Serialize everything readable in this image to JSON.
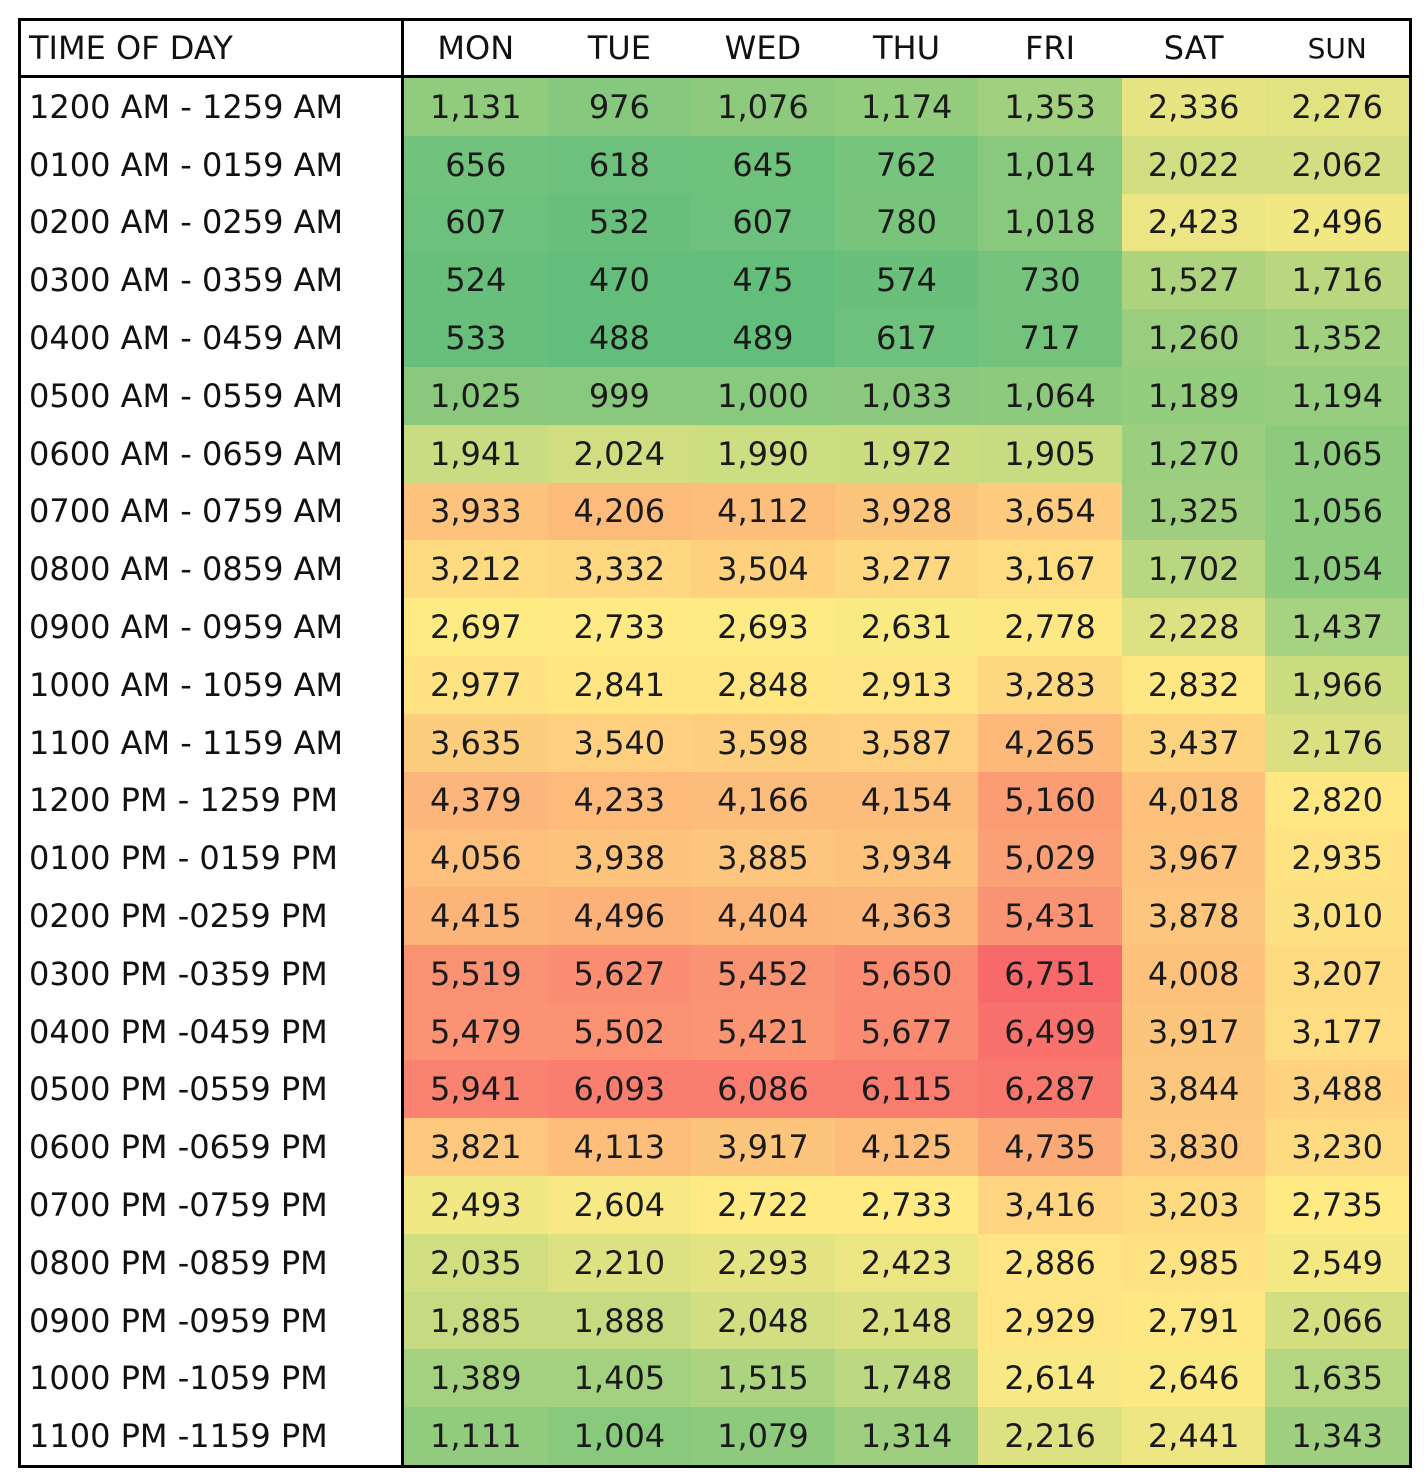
{
  "chart_data": {
    "type": "heatmap",
    "corner_label": "TIME OF DAY",
    "columns": [
      "MON",
      "TUE",
      "WED",
      "THU",
      "FRI",
      "SAT",
      "SUN"
    ],
    "rows": [
      "1200 AM - 1259 AM",
      "0100 AM - 0159 AM",
      "0200 AM - 0259 AM",
      "0300 AM - 0359 AM",
      "0400 AM - 0459 AM",
      "0500 AM - 0559 AM",
      "0600 AM - 0659 AM",
      "0700 AM - 0759 AM",
      "0800 AM - 0859 AM",
      "0900 AM - 0959 AM",
      "1000 AM - 1059 AM",
      "1100 AM - 1159 AM",
      "1200 PM - 1259 PM",
      "0100 PM - 0159 PM",
      "0200 PM -0259 PM",
      "0300 PM -0359 PM",
      "0400 PM -0459 PM",
      "0500 PM -0559 PM",
      "0600 PM -0659 PM",
      "0700 PM -0759 PM",
      "0800 PM -0859 PM",
      "0900 PM -0959 PM",
      "1000 PM -1059 PM",
      "1100 PM -1159 PM"
    ],
    "values": [
      [
        1131,
        976,
        1076,
        1174,
        1353,
        2336,
        2276
      ],
      [
        656,
        618,
        645,
        762,
        1014,
        2022,
        2062
      ],
      [
        607,
        532,
        607,
        780,
        1018,
        2423,
        2496
      ],
      [
        524,
        470,
        475,
        574,
        730,
        1527,
        1716
      ],
      [
        533,
        488,
        489,
        617,
        717,
        1260,
        1352
      ],
      [
        1025,
        999,
        1000,
        1033,
        1064,
        1189,
        1194
      ],
      [
        1941,
        2024,
        1990,
        1972,
        1905,
        1270,
        1065
      ],
      [
        3933,
        4206,
        4112,
        3928,
        3654,
        1325,
        1056
      ],
      [
        3212,
        3332,
        3504,
        3277,
        3167,
        1702,
        1054
      ],
      [
        2697,
        2733,
        2693,
        2631,
        2778,
        2228,
        1437
      ],
      [
        2977,
        2841,
        2848,
        2913,
        3283,
        2832,
        1966
      ],
      [
        3635,
        3540,
        3598,
        3587,
        4265,
        3437,
        2176
      ],
      [
        4379,
        4233,
        4166,
        4154,
        5160,
        4018,
        2820
      ],
      [
        4056,
        3938,
        3885,
        3934,
        5029,
        3967,
        2935
      ],
      [
        4415,
        4496,
        4404,
        4363,
        5431,
        3878,
        3010
      ],
      [
        5519,
        5627,
        5452,
        5650,
        6751,
        4008,
        3207
      ],
      [
        5479,
        5502,
        5421,
        5677,
        6499,
        3917,
        3177
      ],
      [
        5941,
        6093,
        6086,
        6115,
        6287,
        3844,
        3488
      ],
      [
        3821,
        4113,
        3917,
        4125,
        4735,
        3830,
        3230
      ],
      [
        2493,
        2604,
        2722,
        2733,
        3416,
        3203,
        2735
      ],
      [
        2035,
        2210,
        2293,
        2423,
        2886,
        2985,
        2549
      ],
      [
        1885,
        1888,
        2048,
        2148,
        2929,
        2791,
        2066
      ],
      [
        1389,
        1405,
        1515,
        1748,
        2614,
        2646,
        1635
      ],
      [
        1111,
        1004,
        1079,
        1314,
        2216,
        2441,
        1343
      ]
    ],
    "color_scale": {
      "low": "#63be7b",
      "mid": "#ffeb84",
      "high": "#f8696b",
      "low_value": 470,
      "mid_value": 2700,
      "high_value": 6751
    }
  }
}
